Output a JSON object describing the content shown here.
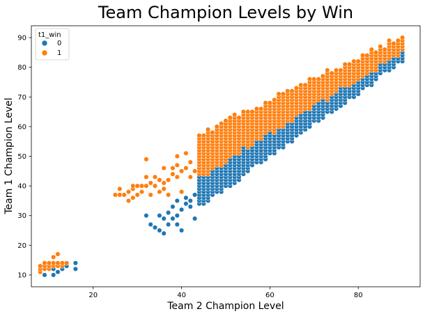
{
  "chart_data": {
    "type": "scatter",
    "title": "Team Champion Levels by Win",
    "xlabel": "Team 2 Champion Level",
    "ylabel": "Team 1 Champion Level",
    "xlim": [
      6,
      94
    ],
    "ylim": [
      6,
      94
    ],
    "xticks": [
      20,
      40,
      60,
      80
    ],
    "yticks": [
      10,
      20,
      30,
      40,
      50,
      60,
      70,
      80,
      90
    ],
    "grid": false,
    "legend": {
      "title": "t1_win",
      "position": "top-left",
      "entries": [
        {
          "label": "0",
          "color": "#1f77b4"
        },
        {
          "label": "1",
          "color": "#ff7f0e"
        }
      ]
    },
    "series": [
      {
        "name": "0",
        "color": "#1f77b4",
        "points": [
          [
            9,
            10
          ],
          [
            11,
            10
          ],
          [
            11,
            12
          ],
          [
            12,
            11
          ],
          [
            12,
            13
          ],
          [
            13,
            12
          ],
          [
            14,
            13
          ],
          [
            16,
            12
          ],
          [
            16,
            14
          ],
          [
            32,
            30
          ],
          [
            33,
            27
          ],
          [
            34,
            26
          ],
          [
            35,
            25
          ],
          [
            35,
            30
          ],
          [
            36,
            24
          ],
          [
            36,
            29
          ],
          [
            37,
            31
          ],
          [
            37,
            27
          ],
          [
            38,
            33
          ],
          [
            38,
            29
          ],
          [
            39,
            30
          ],
          [
            39,
            27
          ],
          [
            39,
            35
          ],
          [
            40,
            25
          ],
          [
            40,
            32
          ],
          [
            41,
            34
          ],
          [
            41,
            36
          ],
          [
            42,
            35
          ],
          [
            42,
            33
          ],
          [
            43,
            37
          ],
          [
            43,
            29
          ],
          [
            44,
            38
          ],
          [
            44,
            36
          ]
        ],
        "regions": [
          {
            "x_from": 44,
            "x_to": 90,
            "upper_at_start": 44,
            "upper_at_end": 89,
            "lower_at_start": 34,
            "lower_at_end": 83
          }
        ]
      },
      {
        "name": "1",
        "color": "#ff7f0e",
        "points": [
          [
            8,
            11
          ],
          [
            8,
            12
          ],
          [
            8,
            13
          ],
          [
            9,
            12
          ],
          [
            9,
            13
          ],
          [
            9,
            14
          ],
          [
            10,
            12
          ],
          [
            10,
            13
          ],
          [
            10,
            14
          ],
          [
            11,
            13
          ],
          [
            11,
            14
          ],
          [
            11,
            16
          ],
          [
            12,
            13
          ],
          [
            12,
            14
          ],
          [
            12,
            17
          ],
          [
            13,
            13
          ],
          [
            13,
            14
          ],
          [
            14,
            14
          ],
          [
            25,
            37
          ],
          [
            26,
            37
          ],
          [
            26,
            39
          ],
          [
            27,
            37
          ],
          [
            28,
            35
          ],
          [
            28,
            38
          ],
          [
            29,
            36
          ],
          [
            29,
            39
          ],
          [
            29,
            40
          ],
          [
            30,
            37
          ],
          [
            30,
            40
          ],
          [
            31,
            38
          ],
          [
            31,
            40
          ],
          [
            32,
            40
          ],
          [
            32,
            43
          ],
          [
            32,
            49
          ],
          [
            33,
            37
          ],
          [
            33,
            41
          ],
          [
            34,
            40
          ],
          [
            34,
            43
          ],
          [
            35,
            38
          ],
          [
            35,
            42
          ],
          [
            36,
            39
          ],
          [
            36,
            41
          ],
          [
            36,
            46
          ],
          [
            37,
            37
          ],
          [
            37,
            42
          ],
          [
            38,
            44
          ],
          [
            38,
            46
          ],
          [
            39,
            43
          ],
          [
            39,
            47
          ],
          [
            39,
            50
          ],
          [
            40,
            38
          ],
          [
            40,
            45
          ],
          [
            41,
            46
          ],
          [
            41,
            51
          ],
          [
            42,
            43
          ],
          [
            42,
            48
          ],
          [
            43,
            45
          ],
          [
            44,
            47
          ]
        ],
        "regions": [
          {
            "x_from": 44,
            "x_to": 90,
            "upper_at_start": 57,
            "upper_at_end": 90,
            "lower_at_start": 44,
            "lower_at_end": 86
          }
        ]
      }
    ]
  }
}
